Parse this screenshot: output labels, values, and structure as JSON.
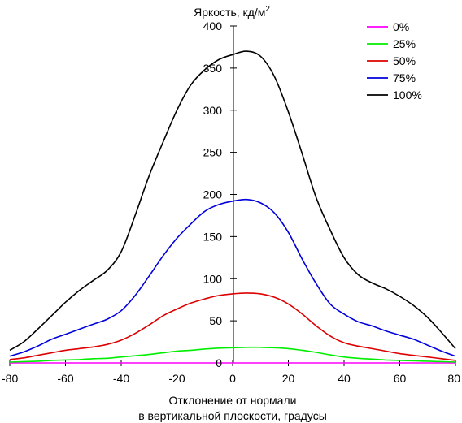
{
  "chart_data": {
    "type": "line",
    "title": "Яркость, кд/м²",
    "xlabel": [
      "Отклонение от нормали",
      "в вертикальной плоскости, градусы"
    ],
    "ylabel": "",
    "xlim": [
      -80,
      80
    ],
    "ylim": [
      0,
      400
    ],
    "x_ticks": [
      -80,
      -60,
      -40,
      -20,
      0,
      20,
      40,
      60,
      80
    ],
    "y_ticks": [
      0,
      50,
      100,
      150,
      200,
      250,
      300,
      350,
      400
    ],
    "grid": false,
    "legend_position": "top-right",
    "x": [
      -80,
      -75,
      -70,
      -65,
      -60,
      -55,
      -50,
      -45,
      -40,
      -35,
      -30,
      -25,
      -20,
      -15,
      -10,
      -5,
      0,
      5,
      10,
      15,
      20,
      25,
      30,
      35,
      40,
      45,
      50,
      55,
      60,
      65,
      70,
      75,
      80
    ],
    "series": [
      {
        "name": "0%",
        "color": "#ff00ff",
        "values": [
          0,
          0,
          0,
          0,
          0,
          0,
          0,
          0,
          0,
          0,
          0,
          0,
          0,
          0,
          0,
          0,
          0,
          0,
          0,
          0,
          0,
          0,
          0,
          0,
          0,
          0,
          0,
          0,
          0,
          0,
          0,
          0,
          0
        ]
      },
      {
        "name": "25%",
        "color": "#00ee00",
        "values": [
          1,
          1.5,
          2,
          3,
          3.5,
          4,
          5,
          5.5,
          7,
          8.5,
          10,
          12,
          14,
          15,
          16.5,
          17.5,
          18,
          18.5,
          18.5,
          18,
          17,
          15,
          12.5,
          9.5,
          7,
          5.5,
          4.5,
          3.5,
          3,
          2.5,
          2,
          1.5,
          1
        ]
      },
      {
        "name": "50%",
        "color": "#dd0000",
        "values": [
          4,
          6,
          9,
          12,
          15,
          17,
          19,
          22,
          27,
          35,
          45,
          56,
          64,
          71,
          76,
          80,
          82,
          83,
          82,
          78,
          70,
          58,
          44,
          32,
          24,
          20,
          17,
          14,
          11,
          9,
          7,
          5,
          3
        ]
      },
      {
        "name": "75%",
        "color": "#0000dd",
        "values": [
          8,
          13,
          20,
          28,
          34,
          40,
          46,
          52,
          62,
          80,
          103,
          127,
          148,
          165,
          180,
          188,
          192,
          194,
          190,
          178,
          155,
          123,
          94,
          70,
          58,
          49,
          44,
          38,
          33,
          28,
          21,
          14,
          8
        ]
      },
      {
        "name": "100%",
        "color": "#000000",
        "values": [
          15,
          25,
          40,
          56,
          72,
          86,
          98,
          110,
          132,
          175,
          222,
          262,
          300,
          330,
          348,
          360,
          366,
          370,
          364,
          340,
          298,
          248,
          196,
          158,
          125,
          105,
          95,
          88,
          79,
          68,
          54,
          36,
          17
        ]
      }
    ]
  }
}
